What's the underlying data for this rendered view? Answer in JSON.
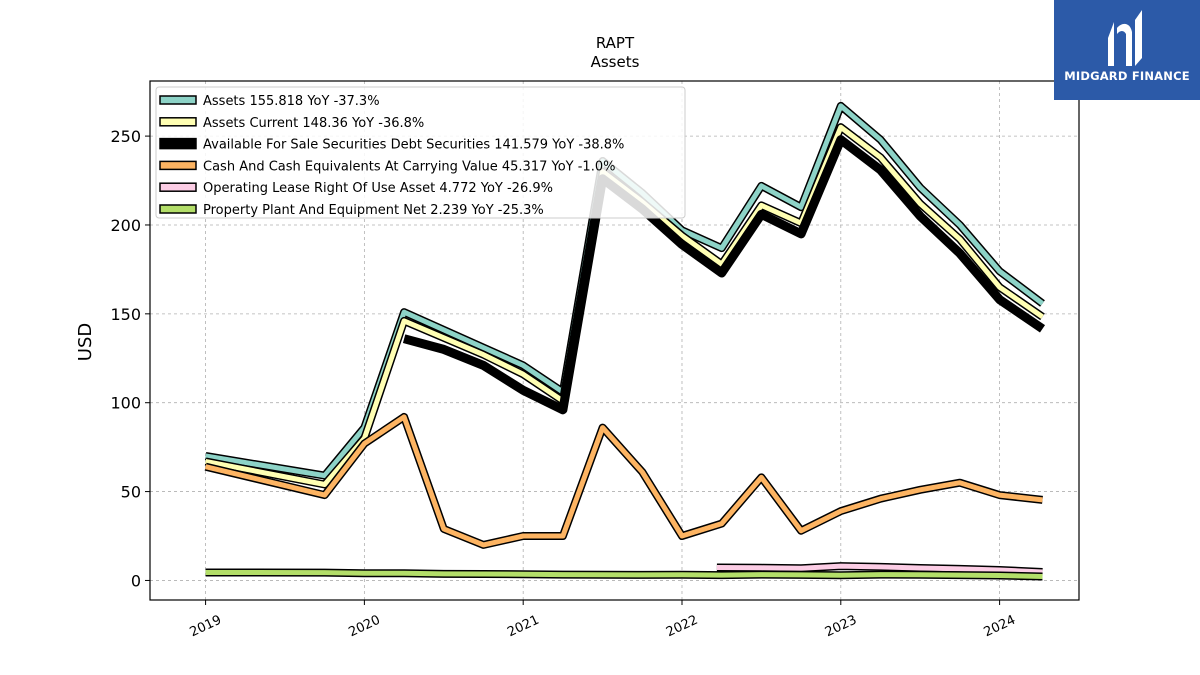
{
  "brand": {
    "name": "MIDGARD FINANCE",
    "color": "#2c5aa8"
  },
  "chart_data": {
    "type": "line",
    "title": "RAPT",
    "subtitle": "Assets",
    "ylabel": "USD",
    "xlabel": "",
    "ylim": [
      -11,
      281
    ],
    "xlim": [
      2018.65,
      2024.5
    ],
    "yticks": [
      0,
      50,
      100,
      150,
      200,
      250
    ],
    "xticks": [
      "2019",
      "2020",
      "2021",
      "2022",
      "2023",
      "2024"
    ],
    "grid": true,
    "legend_position": "top-left",
    "series": [
      {
        "name": "Assets",
        "legend": "Assets  155.818 YoY -37.3%",
        "color": "#8dd3c7",
        "width": 5,
        "x": [
          2019.0,
          2019.75,
          2020.0,
          2020.25,
          2020.75,
          2021.0,
          2021.25,
          2021.5,
          2021.75,
          2022.0,
          2022.25,
          2022.5,
          2022.75,
          2023.0,
          2023.25,
          2023.5,
          2023.75,
          2024.0,
          2024.27
        ],
        "y": [
          70,
          59,
          86,
          151,
          131,
          121,
          106,
          236,
          218,
          197,
          187,
          222,
          210,
          267,
          248,
          221,
          200,
          174,
          155.818
        ]
      },
      {
        "name": "Assets Current",
        "legend": "Assets Current  148.36 YoY -36.8%",
        "color": "#ffffb3",
        "width": 5,
        "x": [
          2019.0,
          2019.75,
          2020.0,
          2020.25,
          2020.75,
          2021.0,
          2021.25,
          2021.5,
          2021.75,
          2022.0,
          2022.25,
          2022.5,
          2022.75,
          2023.0,
          2023.25,
          2023.5,
          2023.75,
          2024.0,
          2024.27
        ],
        "y": [
          67,
          54,
          80,
          146,
          127,
          116,
          101,
          230,
          213,
          194,
          178,
          211,
          201,
          255,
          238,
          212,
          192,
          165,
          148.36
        ]
      },
      {
        "name": "Available For Sale Securities Debt Securities",
        "legend": "Available For Sale Securities Debt Securities  141.579 YoY -38.8%",
        "color": "#000000",
        "width": 9,
        "x": [
          2020.25,
          2020.5,
          2020.75,
          2021.0,
          2021.25,
          2021.5,
          2021.75,
          2022.0,
          2022.25,
          2022.5,
          2022.75,
          2023.0,
          2023.25,
          2023.5,
          2023.75,
          2024.0,
          2024.27
        ],
        "y": [
          136,
          130,
          121,
          107,
          96,
          226,
          209,
          189,
          173,
          206,
          195,
          248,
          231,
          205,
          184,
          158,
          141.579
        ]
      },
      {
        "name": "Cash And Cash Equivalents At Carrying Value",
        "legend": "Cash And Cash Equivalents At Carrying Value  45.317 YoY -1.0%",
        "color": "#fdb462",
        "width": 5,
        "x": [
          2019.0,
          2019.75,
          2020.0,
          2020.25,
          2020.5,
          2020.75,
          2021.0,
          2021.25,
          2021.5,
          2021.75,
          2022.0,
          2022.25,
          2022.5,
          2022.75,
          2023.0,
          2023.25,
          2023.5,
          2023.75,
          2024.0,
          2024.27
        ],
        "y": [
          64,
          48,
          77,
          92,
          29,
          20,
          25,
          25,
          86,
          61,
          25,
          32,
          58,
          28,
          39,
          46,
          51,
          55,
          48,
          45.317
        ]
      },
      {
        "name": "Operating Lease Right Of Use Asset",
        "legend": "Operating Lease Right Of Use Asset  4.772 YoY -26.9%",
        "color": "#fccde5",
        "width": 5,
        "x": [
          2022.22,
          2022.5,
          2022.75,
          2023.0,
          2023.25,
          2023.5,
          2023.75,
          2024.0,
          2024.27
        ],
        "y": [
          7.3,
          7.1,
          6.9,
          8.1,
          7.6,
          7.0,
          6.5,
          5.9,
          4.772
        ]
      },
      {
        "name": "Property Plant And Equipment Net",
        "legend": "Property Plant And Equipment Net  2.239 YoY -25.3%",
        "color": "#b3de69",
        "width": 5,
        "x": [
          2019.0,
          2019.75,
          2020.0,
          2020.25,
          2020.5,
          2020.75,
          2021.0,
          2021.25,
          2021.5,
          2021.75,
          2022.0,
          2022.25,
          2022.5,
          2022.75,
          2023.0,
          2023.25,
          2023.5,
          2023.75,
          2024.0,
          2024.27
        ],
        "y": [
          4.5,
          4.4,
          4.1,
          4.0,
          3.7,
          3.6,
          3.5,
          3.3,
          3.2,
          3.1,
          3.2,
          3.0,
          3.3,
          3.1,
          2.9,
          3.3,
          3.2,
          3.0,
          2.8,
          2.239
        ]
      }
    ]
  }
}
